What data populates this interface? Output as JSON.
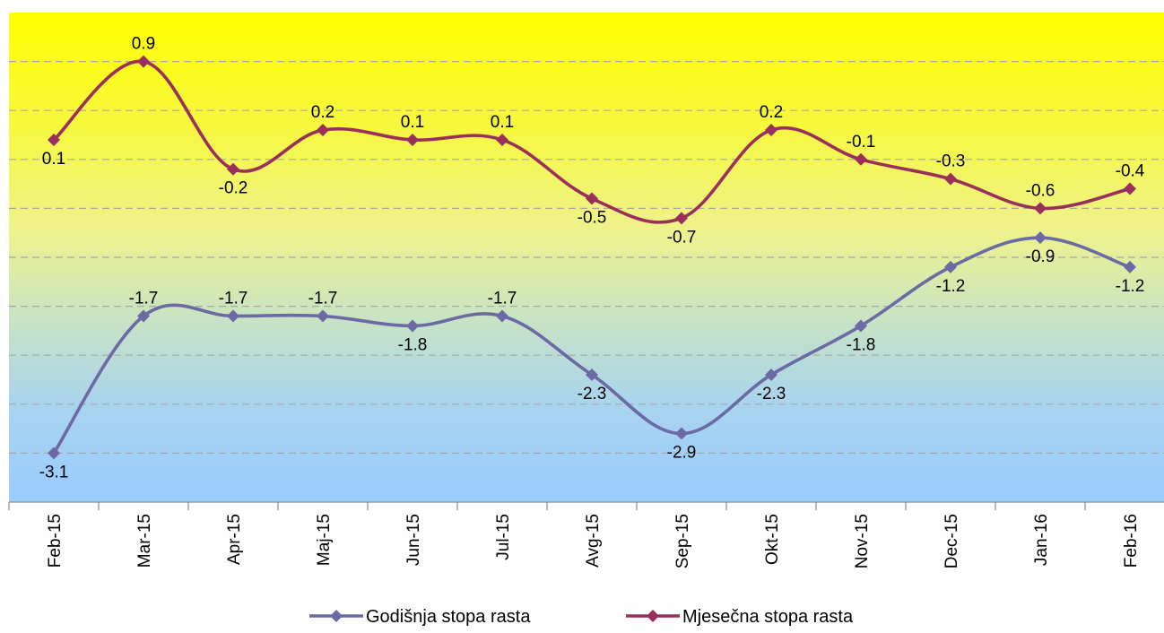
{
  "chart_data": {
    "type": "line",
    "title": "",
    "xlabel": "",
    "ylabel": "",
    "categories": [
      "Feb-15",
      "Mar-15",
      "Apr-15",
      "Maj-15",
      "Jun-15",
      "Jul-15",
      "Avg-15",
      "Sep-15",
      "Okt-15",
      "Nov-15",
      "Dec-15",
      "Jan-16",
      "Feb-16"
    ],
    "ylim": [
      -3.6,
      1.4
    ],
    "grid": true,
    "legend_position": "bottom",
    "background": "vertical gradient yellow (top) to light blue (bottom)",
    "series": [
      {
        "name": "Godišnja stopa rasta",
        "color": "#6B6AA5",
        "marker": "diamond",
        "smooth": true,
        "values": [
          -3.1,
          -1.7,
          -1.7,
          -1.7,
          -1.8,
          -1.7,
          -2.3,
          -2.9,
          -2.3,
          -1.8,
          -1.2,
          -0.9,
          -1.2
        ],
        "labels": [
          "-3.1",
          "-1.7",
          "-1.7",
          "-1.7",
          "-1.8",
          "-1.7",
          "-2.3",
          "-2.9",
          "-2.3",
          "-1.8",
          "-1.2",
          "-0.9",
          "-1.2"
        ],
        "label_positions": [
          "below",
          "above",
          "above",
          "above",
          "below",
          "above",
          "below",
          "below",
          "below",
          "below",
          "below",
          "below",
          "below"
        ]
      },
      {
        "name": "Mjesečna stopa rasta",
        "color": "#9A2F5C",
        "marker": "diamond",
        "smooth": true,
        "values": [
          0.1,
          0.9,
          -0.2,
          0.2,
          0.1,
          0.1,
          -0.5,
          -0.7,
          0.2,
          -0.1,
          -0.3,
          -0.6,
          -0.4
        ],
        "labels": [
          "0.1",
          "0.9",
          "-0.2",
          "0.2",
          "0.1",
          "0.1",
          "-0.5",
          "-0.7",
          "0.2",
          "-0.1",
          "-0.3",
          "-0.6",
          "-0.4"
        ],
        "label_positions": [
          "below",
          "above",
          "below",
          "above",
          "above",
          "above",
          "below",
          "below",
          "above",
          "above",
          "above",
          "above",
          "above"
        ]
      }
    ]
  }
}
